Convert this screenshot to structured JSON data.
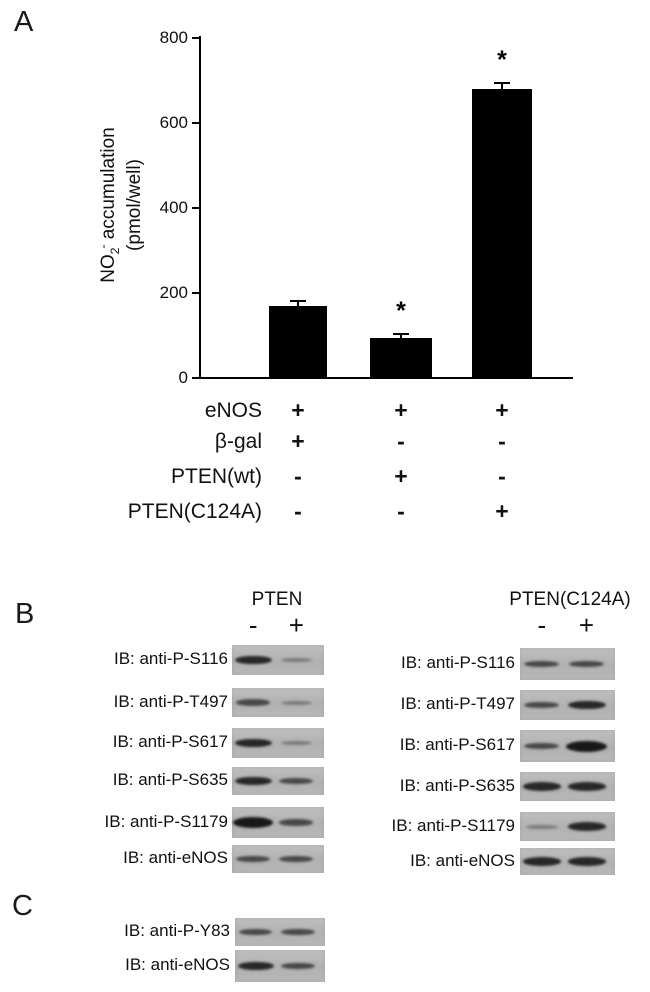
{
  "panel_a": {
    "label": "A",
    "conditions": {
      "rows": [
        {
          "label": "eNOS",
          "marks": [
            "+",
            "+",
            "+"
          ]
        },
        {
          "label": "β-gal",
          "marks": [
            "+",
            "-",
            "-"
          ]
        },
        {
          "label": "PTEN(wt)",
          "marks": [
            "-",
            "+",
            "-"
          ]
        },
        {
          "label": "PTEN(C124A)",
          "marks": [
            "-",
            "-",
            "+"
          ]
        }
      ]
    }
  },
  "chart_data": {
    "type": "bar",
    "title": "",
    "ylabel": "NO2- accumulation (pmol/well)",
    "ylabel_parts": {
      "prefix": "NO",
      "sub": "2",
      "sup": "-",
      "rest": " accumulation",
      "line2": "(pmol/well)"
    },
    "categories": [
      "eNOS + β-gal",
      "eNOS + PTEN(wt)",
      "eNOS + PTEN(C124A)"
    ],
    "values": [
      170,
      95,
      680
    ],
    "errors": [
      13,
      11,
      16
    ],
    "significance": [
      "",
      "*",
      "*"
    ],
    "significance_marker": "*",
    "ylim": [
      0,
      800
    ],
    "yticks": [
      0,
      200,
      400,
      600,
      800
    ],
    "bar_color": "#000000",
    "grid": false,
    "legend": false
  },
  "panel_b": {
    "label": "B",
    "groups": [
      {
        "title": "PTEN",
        "lane_marks": [
          "-",
          "+"
        ],
        "blots": [
          {
            "label": "IB: anti-P-S116",
            "bands": [
              "strong",
              "faint"
            ]
          },
          {
            "label": "IB: anti-P-T497",
            "bands": [
              "medium",
              "faint"
            ]
          },
          {
            "label": "IB: anti-P-S617",
            "bands": [
              "strong",
              "faint"
            ]
          },
          {
            "label": "IB: anti-P-S635",
            "bands": [
              "strong",
              "medium"
            ]
          },
          {
            "label": "IB: anti-P-S1179",
            "bands": [
              "very-strong",
              "medium"
            ]
          },
          {
            "label": "IB: anti-eNOS",
            "bands": [
              "medium",
              "medium"
            ]
          }
        ]
      },
      {
        "title": "PTEN(C124A)",
        "lane_marks": [
          "-",
          "+"
        ],
        "blots": [
          {
            "label": "IB: anti-P-S116",
            "bands": [
              "medium",
              "medium"
            ]
          },
          {
            "label": "IB: anti-P-T497",
            "bands": [
              "medium",
              "strong"
            ]
          },
          {
            "label": "IB: anti-P-S617",
            "bands": [
              "medium",
              "very-strong"
            ]
          },
          {
            "label": "IB: anti-P-S635",
            "bands": [
              "strong",
              "strong"
            ]
          },
          {
            "label": "IB: anti-P-S1179",
            "bands": [
              "faint",
              "strong"
            ]
          },
          {
            "label": "IB: anti-eNOS",
            "bands": [
              "strong",
              "strong"
            ]
          }
        ]
      }
    ]
  },
  "panel_c": {
    "label": "C",
    "blots": [
      {
        "label": "IB: anti-P-Y83",
        "bands": [
          "medium",
          "medium"
        ]
      },
      {
        "label": "IB: anti-eNOS",
        "bands": [
          "strong",
          "medium"
        ]
      }
    ]
  }
}
